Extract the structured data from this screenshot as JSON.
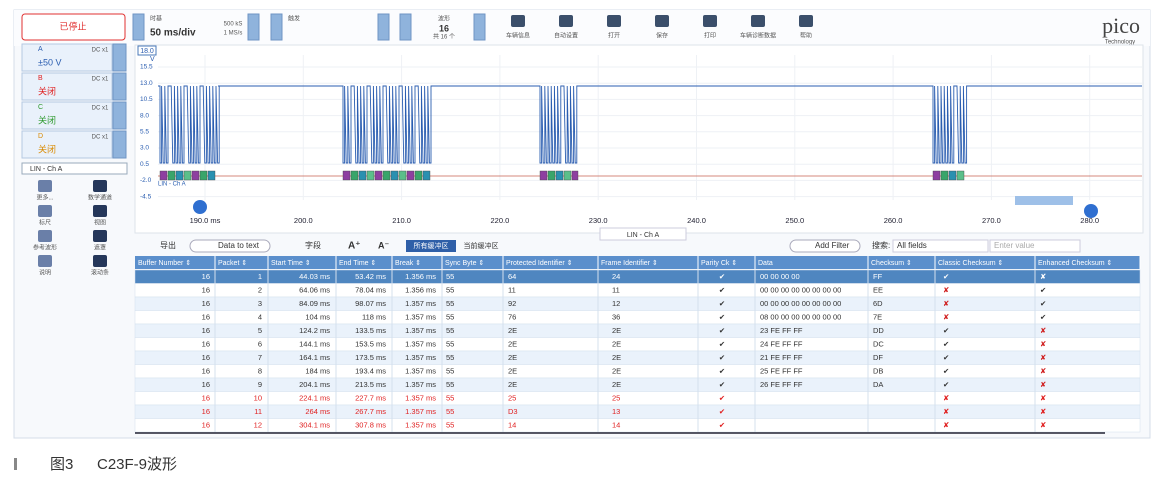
{
  "toolbar": {
    "status": "已停止",
    "timebase_label": "时基",
    "timebase": "50 ms/div",
    "samples": "500 kS",
    "rate": "1 MS/s",
    "trigger_label": "触发",
    "buffer_label": "波形",
    "buffer_count": "16",
    "buffer_total": "共 16 个",
    "tools": [
      "车辆信息",
      "自动设置",
      "打开",
      "保存",
      "打印",
      "车辆诊断数据",
      "帮助"
    ]
  },
  "logo": {
    "name": "pico",
    "sub": "Technology"
  },
  "channels": [
    {
      "name": "A",
      "coupling": "DC x1",
      "state": "±50 V",
      "color": "#2a5db0"
    },
    {
      "name": "B",
      "coupling": "DC x1",
      "state": "关闭",
      "color": "#e02020"
    },
    {
      "name": "C",
      "coupling": "DC x1",
      "state": "关闭",
      "color": "#2e9a2e"
    },
    {
      "name": "D",
      "coupling": "DC x1",
      "state": "关闭",
      "color": "#d98a00"
    }
  ],
  "decoder": "LIN - Ch A",
  "side_tools": [
    "更多...",
    "数学通道",
    "标尺",
    "视图",
    "参考波形",
    "遮罩",
    "说明",
    "滚动条"
  ],
  "waveform": {
    "unit": "V",
    "range_box": "18.0",
    "y_labels": [
      "15.5",
      "13.0",
      "10.5",
      "8.0",
      "5.5",
      "3.0",
      "0.5",
      "-2.0",
      "-4.5"
    ],
    "x_labels": [
      "190.0 ms",
      "200.0",
      "210.0",
      "220.0",
      "230.0",
      "240.0",
      "250.0",
      "260.0",
      "270.0",
      "280.0"
    ],
    "decode_label": "LIN - Ch A",
    "tab": "LIN - Ch A"
  },
  "table_toolbar": {
    "export": "导出",
    "data_to_text": "Data to text",
    "fields": "字段",
    "font_up": "A⁺",
    "font_down": "A⁻",
    "all_buffers": "所有缓冲区",
    "current_buffer": "当前缓冲区",
    "add_filter": "Add Filter",
    "search": "搜索:",
    "search_field": "All fields",
    "search_value": "Enter value"
  },
  "table": {
    "header": [
      "Buffer Number ⇕",
      "Packet ⇕",
      "Start Time ⇕",
      "End Time ⇕",
      "Break ⇕",
      "Sync Byte ⇕",
      "Protected Identifier ⇕",
      "Frame Identifier ⇕",
      "Parity Ck ⇕",
      "Data",
      "Checksum ⇕",
      "Classic Checksum ⇕",
      "Enhanced Checksum ⇕"
    ],
    "rows": [
      {
        "cells": [
          "16",
          "1",
          "44.03 ms",
          "53.42 ms",
          "1.356 ms",
          "55",
          "64",
          "24",
          "✔",
          "00 00 00 00",
          "FF",
          "✔",
          "✘"
        ],
        "error": false,
        "selected": true
      },
      {
        "cells": [
          "16",
          "2",
          "64.06 ms",
          "78.04 ms",
          "1.356 ms",
          "55",
          "11",
          "11",
          "✔",
          "00 00 00 00 00 00 00 00",
          "EE",
          "✘",
          "✔"
        ],
        "error": false,
        "selected": false
      },
      {
        "cells": [
          "16",
          "3",
          "84.09 ms",
          "98.07 ms",
          "1.357 ms",
          "55",
          "92",
          "12",
          "✔",
          "00 00 00 00 00 00 00 00",
          "6D",
          "✘",
          "✔"
        ],
        "error": false,
        "selected": false
      },
      {
        "cells": [
          "16",
          "4",
          "104 ms",
          "118 ms",
          "1.357 ms",
          "55",
          "76",
          "36",
          "✔",
          "08 00 00 00 00 00 00 00",
          "7E",
          "✘",
          "✔"
        ],
        "error": false,
        "selected": false
      },
      {
        "cells": [
          "16",
          "5",
          "124.2 ms",
          "133.5 ms",
          "1.357 ms",
          "55",
          "2E",
          "2E",
          "✔",
          "23 FE FF FF",
          "DD",
          "✔",
          "✘"
        ],
        "error": false,
        "selected": false
      },
      {
        "cells": [
          "16",
          "6",
          "144.1 ms",
          "153.5 ms",
          "1.357 ms",
          "55",
          "2E",
          "2E",
          "✔",
          "24 FE FF FF",
          "DC",
          "✔",
          "✘"
        ],
        "error": false,
        "selected": false
      },
      {
        "cells": [
          "16",
          "7",
          "164.1 ms",
          "173.5 ms",
          "1.357 ms",
          "55",
          "2E",
          "2E",
          "✔",
          "21 FE FF FF",
          "DF",
          "✔",
          "✘"
        ],
        "error": false,
        "selected": false
      },
      {
        "cells": [
          "16",
          "8",
          "184 ms",
          "193.4 ms",
          "1.357 ms",
          "55",
          "2E",
          "2E",
          "✔",
          "25 FE FF FF",
          "DB",
          "✔",
          "✘"
        ],
        "error": false,
        "selected": false
      },
      {
        "cells": [
          "16",
          "9",
          "204.1 ms",
          "213.5 ms",
          "1.357 ms",
          "55",
          "2E",
          "2E",
          "✔",
          "26 FE FF FF",
          "DA",
          "✔",
          "✘"
        ],
        "error": false,
        "selected": false
      },
      {
        "cells": [
          "16",
          "10",
          "224.1 ms",
          "227.7 ms",
          "1.357 ms",
          "55",
          "25",
          "25",
          "✔",
          null,
          null,
          "✘",
          "✘"
        ],
        "error": true,
        "selected": false
      },
      {
        "cells": [
          "16",
          "11",
          "264 ms",
          "267.7 ms",
          "1.357 ms",
          "55",
          "D3",
          "13",
          "✔",
          null,
          null,
          "✘",
          "✘"
        ],
        "error": true,
        "selected": false
      },
      {
        "cells": [
          "16",
          "12",
          "304.1 ms",
          "307.8 ms",
          "1.357 ms",
          "55",
          "14",
          "14",
          "✔",
          null,
          null,
          "✘",
          "✘"
        ],
        "error": true,
        "selected": false
      }
    ]
  },
  "caption": {
    "label": "图3",
    "text": "C23F-9波形"
  }
}
